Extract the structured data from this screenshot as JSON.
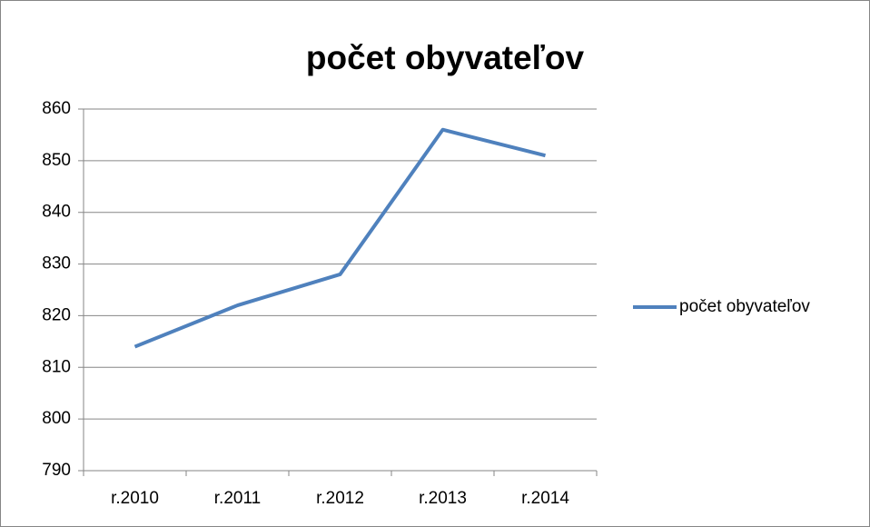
{
  "chart_data": {
    "type": "line",
    "title": "počet obyvateľov",
    "categories": [
      "r.2010",
      "r.2011",
      "r.2012",
      "r.2013",
      "r.2014"
    ],
    "series": [
      {
        "name": "počet obyvateľov",
        "color": "#4f81bd",
        "values": [
          814,
          822,
          828,
          856,
          851
        ]
      }
    ],
    "ylim": [
      790,
      860
    ],
    "yticks": [
      790,
      800,
      810,
      820,
      830,
      840,
      850,
      860
    ],
    "grid": true,
    "legend": "right"
  }
}
